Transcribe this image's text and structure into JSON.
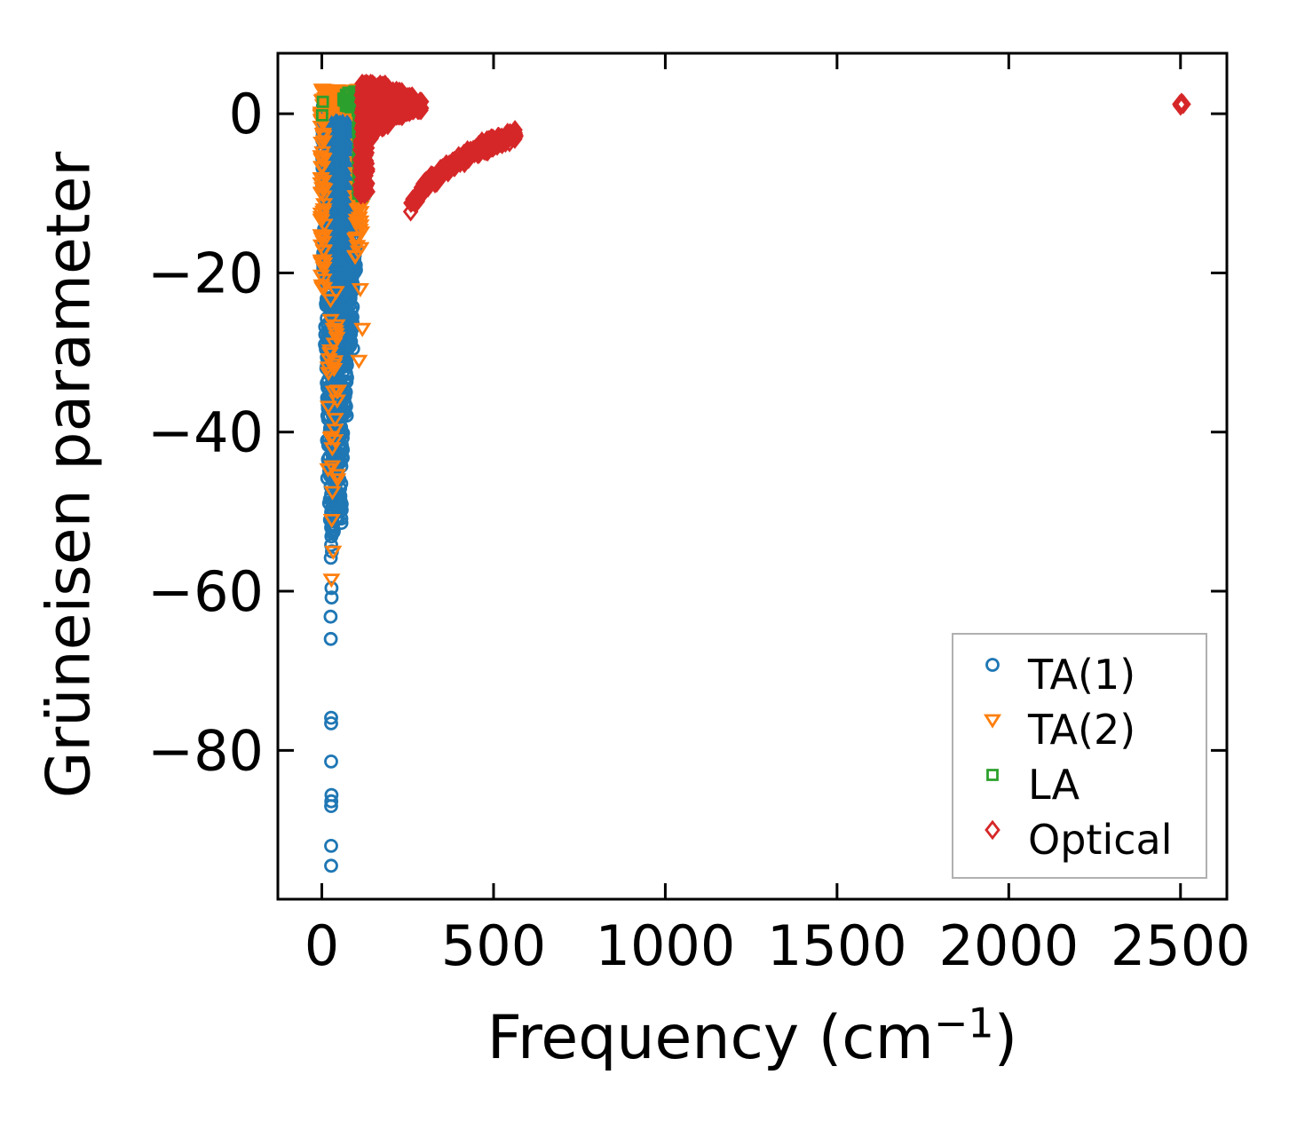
{
  "chart_data": {
    "type": "scatter",
    "title": "",
    "xlabel_prefix": "Frequency (cm",
    "xlabel_sup": "−1",
    "xlabel_suffix": ")",
    "ylabel": "Grüneisen parameter",
    "xlim": [
      -128,
      2635
    ],
    "ylim": [
      -98.7,
      7.6
    ],
    "grid": false,
    "legend_position": "lower right",
    "xtick_values": [
      0,
      500,
      1000,
      1500,
      2000,
      2500
    ],
    "xtick_labels": [
      "0",
      "500",
      "1000",
      "1500",
      "2000",
      "2500"
    ],
    "ytick_values": [
      0,
      -20,
      -40,
      -60,
      -80
    ],
    "ytick_labels": [
      "0",
      "−20",
      "−40",
      "−60",
      "−80"
    ],
    "series": [
      {
        "name": "TA(1)",
        "marker": "circle",
        "color": "#1f77b4",
        "seed": 11,
        "clusters": [
          {
            "x": [
              1,
              104
            ],
            "y": [
              -10,
              2.2
            ],
            "n": 430
          },
          {
            "x": [
              4,
              100
            ],
            "y": [
              -20,
              -10
            ],
            "n": 270
          },
          {
            "x": [
              9,
              92
            ],
            "y": [
              -30,
              -20
            ],
            "n": 195
          },
          {
            "x": [
              13,
              74
            ],
            "y": [
              -38,
              -30
            ],
            "n": 120
          },
          {
            "x": [
              15,
              62
            ],
            "y": [
              -46,
              -38
            ],
            "n": 82
          },
          {
            "x": [
              21,
              58
            ],
            "y": [
              -51.5,
              -46
            ],
            "n": 42
          },
          {
            "x": [
              24,
              40
            ],
            "y": [
              -53.5,
              -51.5
            ],
            "n": 10
          }
        ],
        "points": [
          [
            27,
            -54.2
          ],
          [
            29.5,
            -55
          ],
          [
            26,
            -55.8
          ],
          [
            28,
            -59.6
          ],
          [
            28.5,
            -60.8
          ],
          [
            25.5,
            -63.2
          ],
          [
            26,
            -66
          ],
          [
            27,
            -75.9
          ],
          [
            27,
            -76.6
          ],
          [
            27,
            -81.4
          ],
          [
            28,
            -85.6
          ],
          [
            27.5,
            -86.4
          ],
          [
            27,
            -87
          ],
          [
            27,
            -92
          ],
          [
            27,
            -94.5
          ]
        ]
      },
      {
        "name": "TA(2)",
        "marker": "triangle-down",
        "color": "#ff7f0e",
        "seed": 22,
        "clusters": [
          {
            "x": [
              0,
              132
            ],
            "y": [
              0.6,
              3.1
            ],
            "n": 170
          },
          {
            "x": [
              -3,
              8
            ],
            "y": [
              -22,
              0.6
            ],
            "n": 60
          },
          {
            "x": [
              96,
              116
            ],
            "y": [
              -18,
              0.5
            ],
            "n": 48
          },
          {
            "x": [
              18,
              48
            ],
            "y": [
              -46,
              -22
            ],
            "n": 30
          }
        ],
        "points": [
          [
            31,
            -47.5
          ],
          [
            29,
            -51
          ],
          [
            33,
            -55
          ],
          [
            28,
            -58.5
          ],
          [
            45,
            -36
          ],
          [
            38,
            -41
          ],
          [
            112,
            -22
          ],
          [
            118,
            -27
          ],
          [
            108,
            -31
          ]
        ]
      },
      {
        "name": "LA",
        "marker": "square",
        "color": "#2ca02c",
        "seed": 33,
        "clusters": [
          {
            "x": [
              104,
              129
            ],
            "y": [
              -10.4,
              2.6
            ],
            "n": 135
          },
          {
            "x": [
              60,
              104
            ],
            "y": [
              0.8,
              2.8
            ],
            "n": 35
          }
        ],
        "points": [
          [
            1,
            -0.2
          ],
          [
            3,
            1.5
          ]
        ]
      },
      {
        "name": "Optical",
        "marker": "diamond",
        "color": "#d62728",
        "seed": 44,
        "clusters": [
          {
            "x": [
              115,
              150
            ],
            "y": [
              -3.2,
              3.8
            ],
            "n": 170
          },
          {
            "x": [
              150,
              195
            ],
            "y": [
              -1.8,
              3.7
            ],
            "n": 140
          },
          {
            "x": [
              195,
              235
            ],
            "y": [
              -0.6,
              2.9
            ],
            "n": 90
          },
          {
            "x": [
              235,
              265
            ],
            "y": [
              0.0,
              2.2
            ],
            "n": 50
          },
          {
            "x": [
              265,
              290
            ],
            "y": [
              0.4,
              1.6
            ],
            "n": 25
          },
          {
            "x": [
              110,
              134
            ],
            "y": [
              -10.3,
              -3.2
            ],
            "n": 60
          }
        ],
        "band": {
          "n": 230,
          "half_width": 0.9,
          "x_jitter": 7,
          "centerline": [
            [
              258,
              -11.6
            ],
            [
              280,
              -10.3
            ],
            [
              300,
              -9.3
            ],
            [
              320,
              -8.4
            ],
            [
              340,
              -7.7
            ],
            [
              360,
              -7.0
            ],
            [
              380,
              -6.4
            ],
            [
              400,
              -5.8
            ],
            [
              420,
              -5.3
            ],
            [
              440,
              -4.8
            ],
            [
              460,
              -4.4
            ],
            [
              480,
              -4.0
            ],
            [
              500,
              -3.6
            ],
            [
              520,
              -3.3
            ],
            [
              540,
              -3.0
            ],
            [
              555,
              -2.9
            ],
            [
              565,
              -2.8
            ]
          ]
        },
        "points": [
          [
            2498,
            1.2
          ],
          [
            2505,
            1.3
          ],
          [
            2502,
            1.1
          ],
          [
            2508,
            1.2
          ],
          [
            2500,
            1.0
          ],
          [
            2503,
            1.4
          ]
        ]
      }
    ]
  }
}
